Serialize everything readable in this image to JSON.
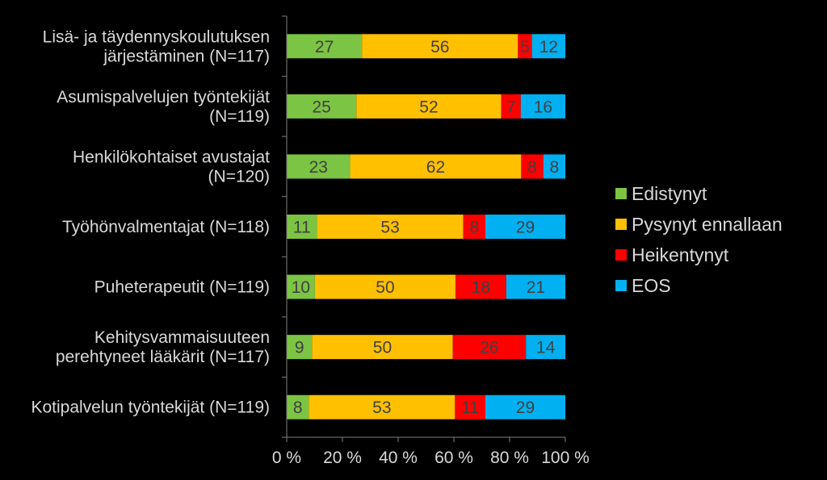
{
  "chart_data": {
    "type": "bar",
    "orientation": "horizontal",
    "stacked": true,
    "percent": true,
    "categories": [
      [
        "Lisä- ja täydennyskoulutuksen",
        "järjestäminen (N=117)"
      ],
      [
        "Asumispalvelujen työntekijät",
        "(N=119)"
      ],
      [
        "Henkilökohtaiset avustajat",
        "(N=120)"
      ],
      [
        "Työhönvalmentajat (N=118)"
      ],
      [
        "Puheterapeutit (N=119)"
      ],
      [
        "Kehitysvammaisuuteen",
        "perehtyneet lääkärit (N=117)"
      ],
      [
        "Kotipalvelun työntekijät (N=119)"
      ]
    ],
    "series": [
      {
        "name": "Edistynyt",
        "color": "#7cc444",
        "values": [
          27,
          25,
          23,
          11,
          10,
          9,
          8
        ]
      },
      {
        "name": "Pysynyt ennallaan",
        "color": "#ffc000",
        "values": [
          56,
          52,
          62,
          53,
          50,
          50,
          53
        ]
      },
      {
        "name": "Heikentynyt",
        "color": "#ff0000",
        "values": [
          5,
          7,
          8,
          8,
          18,
          26,
          11
        ]
      },
      {
        "name": "EOS",
        "color": "#00b0f0",
        "values": [
          12,
          16,
          8,
          29,
          21,
          14,
          29
        ]
      }
    ],
    "xlim": [
      0,
      100
    ],
    "xticks": [
      "0 %",
      "20 %",
      "40 %",
      "60 %",
      "80 %",
      "100 %"
    ],
    "legend_position": "right",
    "grid": false
  }
}
